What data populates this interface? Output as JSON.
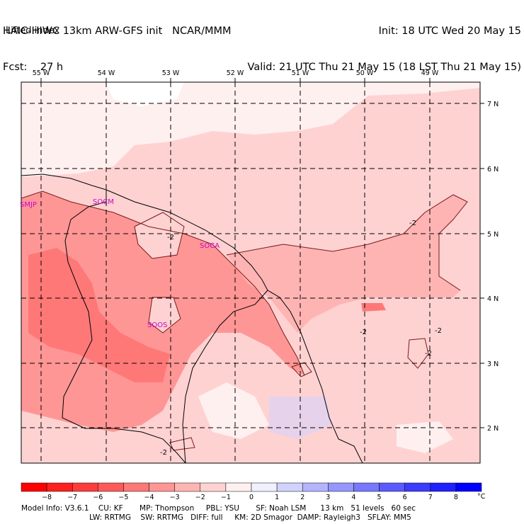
{
  "header": {
    "model_line": "HAIC-HIWC 13km ARW-GFS init   NCAR/MMM",
    "fcst_line": "Fcst:    27 h",
    "field": "Lifted index",
    "init_line": "Init: 18 UTC Wed 20 May 15",
    "valid_line": "Valid: 21 UTC Thu 21 May 15 (18 LST Thu 21 May 15)"
  },
  "map": {
    "lon_labels": [
      "55 W",
      "54 W",
      "53 W",
      "52 W",
      "51 W",
      "50 W",
      "49 W"
    ],
    "lat_labels": [
      "7 N",
      "6 N",
      "5 N",
      "4 N",
      "3 N",
      "2 N"
    ],
    "stations": [
      "SMJP",
      "SOCM",
      "SOCA",
      "SOOS"
    ],
    "contour_labels": [
      "-2",
      "-2",
      "-2",
      "-2",
      "-2",
      "-2",
      "-2"
    ]
  },
  "colorbar": {
    "unit": "°C",
    "tick_labels": [
      "-8",
      "-7",
      "-6",
      "-5",
      "-4",
      "-3",
      "-2",
      "-1",
      "0",
      "1",
      "2",
      "3",
      "4",
      "5",
      "6",
      "7",
      "8"
    ],
    "colors": [
      "#ff0000",
      "#ff2020",
      "#ff3c3c",
      "#ff5a5a",
      "#ff7878",
      "#ff9696",
      "#ffb4b4",
      "#ffd2d2",
      "#fff0f0",
      "#f0f0ff",
      "#d2d2ff",
      "#b4b4ff",
      "#9696ff",
      "#7878ff",
      "#5a5aff",
      "#3c3cff",
      "#2020ff",
      "#0000ff"
    ]
  },
  "footer": {
    "line1": "Model Info: V3.6.1    CU: KF       MP: Thompson     PBL: YSU       SF: Noah LSM      13 km   51 levels   60 sec",
    "line2": "LW: RRTMG    SW: RRTMG   DIFF: full     KM: 2D Smagor  DAMP: Rayleigh3   SFLAY: MM5"
  }
}
